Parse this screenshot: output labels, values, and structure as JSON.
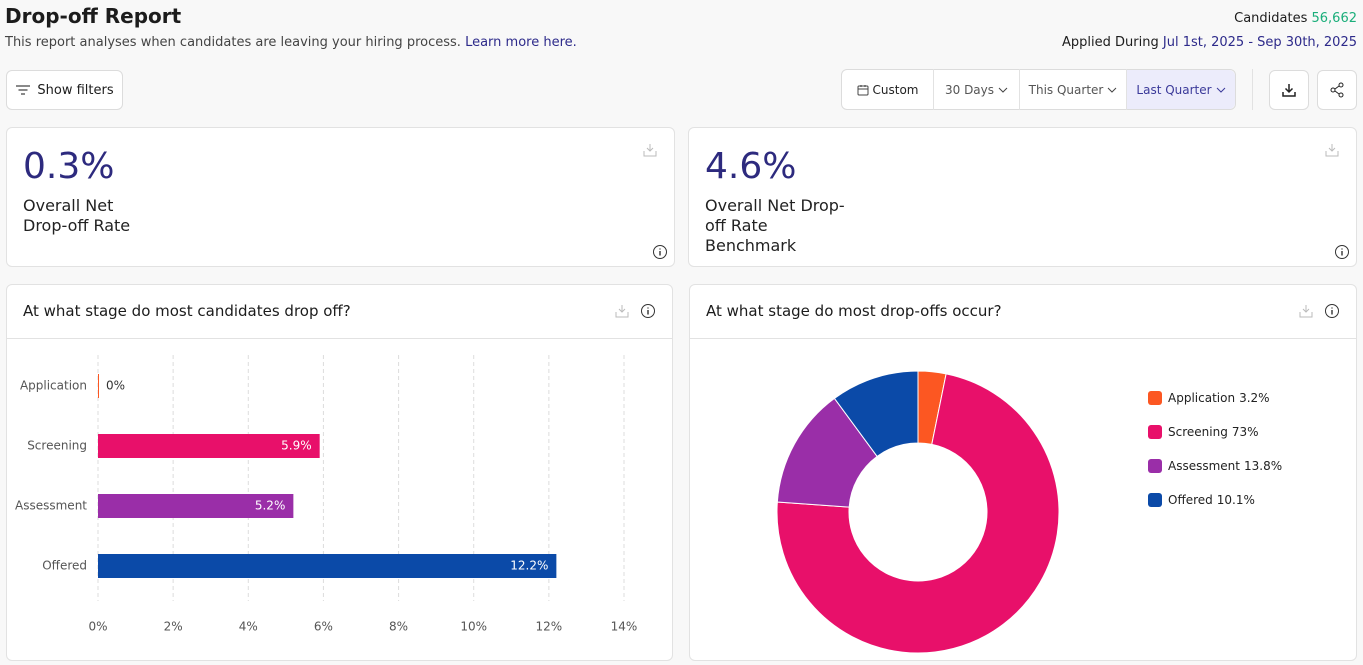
{
  "header": {
    "title": "Drop-off Report",
    "subtitle": "This report analyses when candidates are leaving your hiring process.",
    "learn_more": "Learn more here.",
    "candidates_label": "Candidates",
    "candidates_value": "56,662",
    "applied_label": "Applied During",
    "applied_range": "Jul 1st, 2025 - Sep 30th, 2025"
  },
  "toolbar": {
    "show_filters": "Show filters",
    "ranges": [
      "Custom",
      "30 Days",
      "This Quarter",
      "Last Quarter"
    ]
  },
  "kpis": [
    {
      "value": "0.3%",
      "label": "Overall Net Drop-off Rate"
    },
    {
      "value": "4.6%",
      "label": "Overall Net Drop-off Rate Benchmark"
    }
  ],
  "chart_data": [
    {
      "type": "bar",
      "orientation": "horizontal",
      "title": "At what stage do most candidates drop off?",
      "categories": [
        "Application",
        "Screening",
        "Assessment",
        "Offered"
      ],
      "values": [
        0,
        5.9,
        5.2,
        12.2
      ],
      "value_labels": [
        "0%",
        "5.9%",
        "5.2%",
        "12.2%"
      ],
      "colors": [
        "#fc5722",
        "#e8106a",
        "#9a2ea8",
        "#0b4aa8"
      ],
      "xlim": [
        0,
        14
      ],
      "xticks": [
        {
          "value": 0,
          "label": "0%"
        },
        {
          "value": 2,
          "label": "2%"
        },
        {
          "value": 4,
          "label": "4%"
        },
        {
          "value": 6,
          "label": "6%"
        },
        {
          "value": 8,
          "label": "8%"
        },
        {
          "value": 10,
          "label": "10%"
        },
        {
          "value": 12,
          "label": "12%"
        },
        {
          "value": 14,
          "label": "14%"
        }
      ],
      "grid": true
    },
    {
      "type": "pie",
      "donut": true,
      "title": "At what stage do most drop-offs occur?",
      "categories": [
        "Application",
        "Screening",
        "Assessment",
        "Offered"
      ],
      "values": [
        3.2,
        73,
        13.8,
        10.1
      ],
      "value_labels": [
        "3.2%",
        "73%",
        "13.8%",
        "10.1%"
      ],
      "colors": [
        "#fc5722",
        "#e8106a",
        "#9a2ea8",
        "#0b4aa8"
      ],
      "legend": "right"
    }
  ]
}
